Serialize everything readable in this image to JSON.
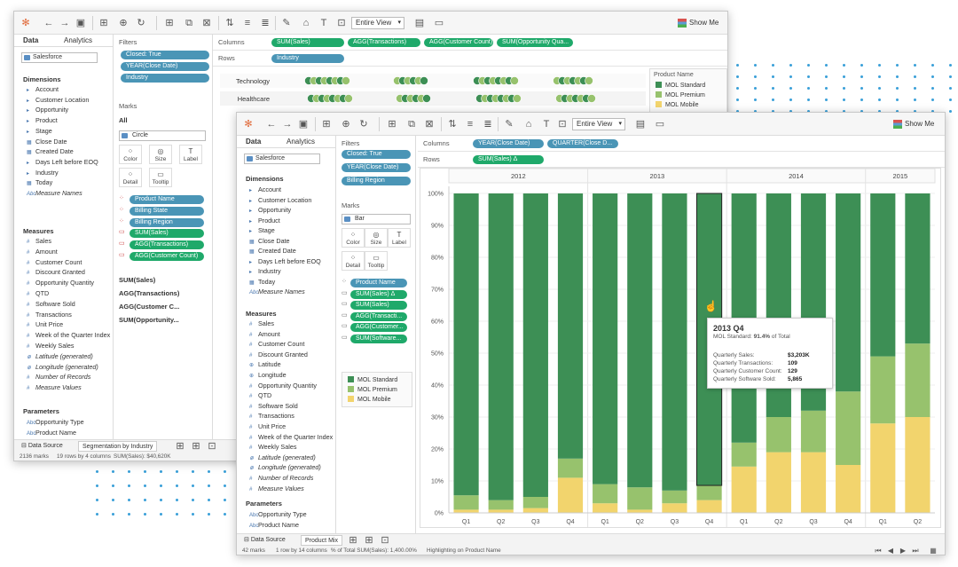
{
  "back_window": {
    "tabs": {
      "data": "Data",
      "analytics": "Analytics"
    },
    "datasource": "Salesforce",
    "dimensions_header": "Dimensions",
    "dimensions": [
      "Account",
      "Customer Location",
      "Opportunity",
      "Product",
      "Stage",
      "Close Date",
      "Created Date",
      "Days Left before EOQ",
      "Industry",
      "Today",
      "Measure Names"
    ],
    "measures_header": "Measures",
    "measures": [
      "Sales",
      "Amount",
      "Customer Count",
      "Discount Granted",
      "Opportunity Quantity",
      "QTD",
      "Software Sold",
      "Transactions",
      "Unit Price",
      "Week of the Quarter Index",
      "Weekly Sales",
      "Latitude (generated)",
      "Longitude (generated)",
      "Number of Records",
      "Measure Values"
    ],
    "parameters_header": "Parameters",
    "parameters": [
      "Opportunity Type",
      "Product Name"
    ],
    "filters_header": "Filters",
    "filters": [
      "Closed: True",
      "YEAR(Close Date)",
      "Industry"
    ],
    "marks_header": "Marks",
    "marks_all": "All",
    "mark_type": "Circle",
    "mark_buttons": [
      "Color",
      "Size",
      "Label",
      "Detail",
      "Tooltip"
    ],
    "mark_fields": [
      "Product Name",
      "Billing State",
      "Billing Region",
      "SUM(Sales)",
      "AGG(Transactions)",
      "AGG(Customer Count)"
    ],
    "mark_cards": [
      "SUM(Sales)",
      "AGG(Transactions)",
      "AGG(Customer C...",
      "SUM(Opportunity..."
    ],
    "columns_label": "Columns",
    "columns": [
      "SUM(Sales)",
      "AGG(Transactions)",
      "AGG(Customer Count)",
      "SUM(Opportunity Qua..."
    ],
    "rows_label": "Rows",
    "rows": [
      "Industry"
    ],
    "view_mode": "Entire View",
    "show_me": "Show Me",
    "row_headers": [
      "Technology",
      "Healthcare"
    ],
    "legend_title": "Product Name",
    "legend": [
      "MOL Standard",
      "MOL Premium",
      "MOL Mobile"
    ],
    "sheet_tabs": [
      "Data Source",
      "Segmentation by Industry"
    ],
    "status": {
      "marks": "2136 marks",
      "rows": "19 rows by 4 columns",
      "sum": "SUM(Sales): $40,620K"
    }
  },
  "front_window": {
    "tabs": {
      "data": "Data",
      "analytics": "Analytics"
    },
    "datasource": "Salesforce",
    "dimensions_header": "Dimensions",
    "dimensions": [
      "Account",
      "Customer Location",
      "Opportunity",
      "Product",
      "Stage",
      "Close Date",
      "Created Date",
      "Days Left before EOQ",
      "Industry",
      "Today",
      "Measure Names"
    ],
    "measures_header": "Measures",
    "measures": [
      "Sales",
      "Amount",
      "Customer Count",
      "Discount Granted",
      "Latitude",
      "Longitude",
      "Opportunity Quantity",
      "QTD",
      "Software Sold",
      "Transactions",
      "Unit Price",
      "Week of the Quarter Index",
      "Weekly Sales",
      "Latitude (generated)",
      "Longitude (generated)",
      "Number of Records",
      "Measure Values"
    ],
    "parameters_header": "Parameters",
    "parameters": [
      "Opportunity Type",
      "Product Name"
    ],
    "filters_header": "Filters",
    "filters": [
      "Closed: True",
      "YEAR(Close Date)",
      "Billing Region"
    ],
    "marks_header": "Marks",
    "mark_type": "Bar",
    "mark_buttons": [
      "Color",
      "Size",
      "Label",
      "Detail",
      "Tooltip"
    ],
    "mark_fields": [
      "Product Name",
      "SUM(Sales) Δ",
      "SUM(Sales)",
      "AGG(Transacti...",
      "AGG(Customer...",
      "SUM(Software..."
    ],
    "legend": [
      "MOL Standard",
      "MOL Premium",
      "MOL Mobile"
    ],
    "columns_label": "Columns",
    "columns": [
      "YEAR(Close Date)",
      "QUARTER(Close D..."
    ],
    "rows_label": "Rows",
    "rows": [
      "SUM(Sales) Δ"
    ],
    "view_mode": "Entire View",
    "show_me": "Show Me",
    "sheet_tabs": [
      "Data Source",
      "Product Mix"
    ],
    "status": {
      "marks": "42 marks",
      "rows": "1 row by 14 columns",
      "pct": "% of Total SUM(Sales): 1,400.00%",
      "highlight": "Highlighting on Product Name"
    }
  },
  "tooltip": {
    "title": "2013 Q4",
    "subtitle_prefix": "MOL Standard:",
    "subtitle_value": "91.4%",
    "subtitle_suffix": "of Total",
    "rows": [
      {
        "label": "Quarterly Sales:",
        "value": "$3,203K"
      },
      {
        "label": "Quarterly Transactions:",
        "value": "109"
      },
      {
        "label": "Quarterly Customer Count:",
        "value": "129"
      },
      {
        "label": "Quarterly Software Sold:",
        "value": "5,865"
      }
    ]
  },
  "colors": {
    "standard": "#3d8f55",
    "premium": "#97c26d",
    "mobile": "#f2d46d",
    "pill_blue": "#4a95b6",
    "pill_green": "#1fa96a"
  },
  "chart_data": {
    "type": "bar",
    "stacked": true,
    "title": "",
    "ylabel": "",
    "ylim": [
      0,
      100
    ],
    "y_ticks": [
      "0%",
      "10%",
      "20%",
      "30%",
      "40%",
      "50%",
      "60%",
      "70%",
      "80%",
      "90%",
      "100%"
    ],
    "years": [
      "2012",
      "2013",
      "2014",
      "2015"
    ],
    "categories": [
      "Q1",
      "Q2",
      "Q3",
      "Q4",
      "Q1",
      "Q2",
      "Q3",
      "Q4",
      "Q1",
      "Q2",
      "Q3",
      "Q4",
      "Q1",
      "Q2"
    ],
    "category_years": [
      "2012",
      "2012",
      "2012",
      "2012",
      "2013",
      "2013",
      "2013",
      "2013",
      "2014",
      "2014",
      "2014",
      "2014",
      "2015",
      "2015"
    ],
    "series": [
      {
        "name": "MOL Standard",
        "values": [
          94.5,
          96,
          95,
          83,
          91,
          92,
          93,
          91.4,
          78,
          70,
          68,
          62,
          51,
          47
        ]
      },
      {
        "name": "MOL Premium",
        "values": [
          4.5,
          3,
          3.5,
          6,
          6,
          7,
          4,
          4.6,
          7.5,
          11,
          13,
          23,
          21,
          23
        ]
      },
      {
        "name": "MOL Mobile",
        "values": [
          1,
          1,
          1.5,
          11,
          3,
          1,
          3,
          4,
          14.5,
          19,
          19,
          15,
          28,
          30
        ]
      }
    ]
  }
}
